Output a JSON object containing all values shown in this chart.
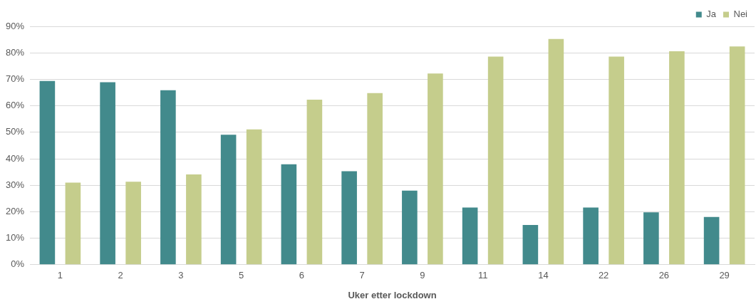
{
  "chart_data": {
    "type": "bar",
    "xlabel": "Uker etter lockdown",
    "categories": [
      "1",
      "2",
      "3",
      "5",
      "6",
      "7",
      "9",
      "11",
      "14",
      "22",
      "26",
      "29"
    ],
    "series": [
      {
        "name": "Ja",
        "color": "#428a8c",
        "values": [
          69.4,
          68.9,
          65.9,
          49.1,
          37.9,
          35.3,
          28.0,
          21.6,
          15.0,
          21.6,
          19.8,
          18.0
        ]
      },
      {
        "name": "Nei",
        "color": "#c5cd8c",
        "values": [
          31.0,
          31.3,
          34.1,
          51.1,
          62.3,
          64.8,
          72.2,
          78.6,
          85.2,
          78.6,
          80.6,
          82.4
        ]
      }
    ],
    "ylim": [
      0,
      90
    ],
    "yticks": [
      {
        "value": 0,
        "label": "0%"
      },
      {
        "value": 10,
        "label": "10%"
      },
      {
        "value": 20,
        "label": "20%"
      },
      {
        "value": 30,
        "label": "30%"
      },
      {
        "value": 40,
        "label": "40%"
      },
      {
        "value": 50,
        "label": "50%"
      },
      {
        "value": 60,
        "label": "60%"
      },
      {
        "value": 70,
        "label": "70%"
      },
      {
        "value": 80,
        "label": "80%"
      },
      {
        "value": 90,
        "label": "90%"
      }
    ],
    "grid": "y",
    "legend": "top right"
  }
}
